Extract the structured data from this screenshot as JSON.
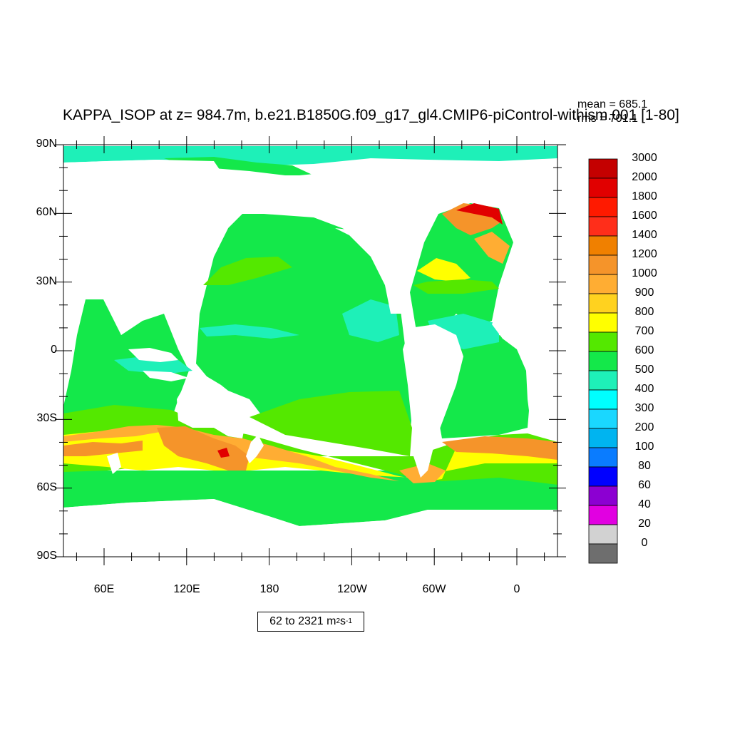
{
  "title": "KAPPA_ISOP at z= 984.7m, b.e21.B1850G.f09_g17_gl4.CMIP6-piControl-withism.001 [1-80]",
  "stats": {
    "mean": "mean = 685.1",
    "rms": "rms = 701.1"
  },
  "range_label": {
    "text": "62 to 2321 m",
    "sup1": "2",
    "mid": " s",
    "sup2": "-1"
  },
  "lat_labels": [
    "90N",
    "60N",
    "30N",
    "0",
    "30S",
    "60S",
    "90S"
  ],
  "lon_labels": [
    "60E",
    "120E",
    "180",
    "120W",
    "60W",
    "0"
  ],
  "colorbar": {
    "levels": [
      "3000",
      "2000",
      "1800",
      "1600",
      "1400",
      "1200",
      "1000",
      "900",
      "800",
      "700",
      "600",
      "500",
      "400",
      "300",
      "200",
      "100",
      "80",
      "60",
      "40",
      "20",
      "0"
    ],
    "colors": [
      "#c40000",
      "#e10000",
      "#ff1a00",
      "#ff2e1a",
      "#f08000",
      "#f5942a",
      "#ffad33",
      "#ffd21f",
      "#ffff00",
      "#54e800",
      "#14e84a",
      "#1ef0b8",
      "#00ffff",
      "#1ad7ff",
      "#00b4f0",
      "#0a7cff",
      "#0000ff",
      "#8c00d2",
      "#e100e1",
      "#d2d2d2",
      "#6e6e6e"
    ]
  },
  "colors": {
    "land": "#ffffff",
    "ocean_base": "#14e84a",
    "green_700": "#54e800",
    "yellow_800": "#ffff00",
    "orange_1000": "#ffad33",
    "orange_1200": "#f5942a",
    "red_1600": "#e10000",
    "cyan_600": "#1ef0b8",
    "teal_500": "#00ffff"
  }
}
